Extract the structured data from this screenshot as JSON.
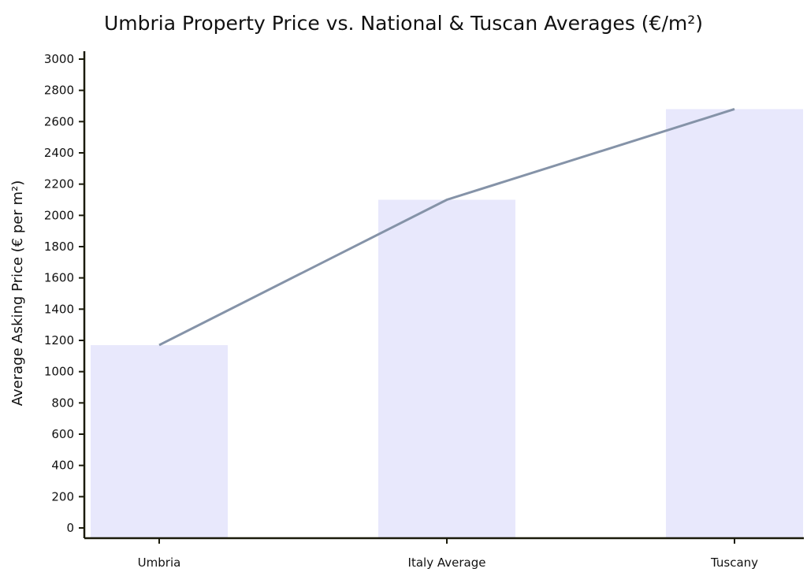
{
  "chart_data": {
    "type": "bar",
    "title": "Umbria Property Price vs. National & Tuscan Averages (€/m²)",
    "xlabel": "",
    "ylabel": "Average Asking Price (€ per m²)",
    "categories": [
      "Umbria",
      "Italy Average",
      "Tuscany"
    ],
    "values": [
      1170,
      2100,
      2680
    ],
    "line_overlay": {
      "values": [
        1170,
        2100,
        2680
      ]
    },
    "ylim": [
      0,
      3000
    ],
    "yticks": [
      0,
      200,
      400,
      600,
      800,
      1000,
      1200,
      1400,
      1600,
      1800,
      2000,
      2200,
      2400,
      2600,
      2800,
      3000
    ],
    "grid": false,
    "colors": {
      "bar": "#e8e8fc",
      "line": "#8593a8",
      "axis": "#1a1a0a"
    }
  }
}
